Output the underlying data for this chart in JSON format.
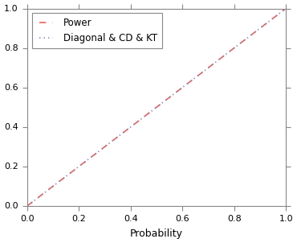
{
  "title": "",
  "xlabel": "Probability",
  "ylabel": "",
  "xlim": [
    0.0,
    1.0
  ],
  "ylim": [
    0.0,
    1.0
  ],
  "x_ticks": [
    0.0,
    0.2,
    0.4,
    0.6,
    0.8,
    1.0
  ],
  "y_ticks": [
    0.0,
    0.2,
    0.4,
    0.6,
    0.8,
    1.0
  ],
  "power_color": "#E8635A",
  "power_linestyle": "--",
  "power_linewidth": 1.2,
  "power_label": "Power",
  "diagonal_color": "#8888BB",
  "diagonal_linestyle": ":",
  "diagonal_linewidth": 1.2,
  "diagonal_label": "Diagonal & CD & KT",
  "background_color": "#FFFFFF",
  "axes_bg_color": "#FFFFFF",
  "legend_loc": "upper left",
  "legend_fontsize": 8.5,
  "xlabel_fontsize": 9,
  "tick_fontsize": 8,
  "figsize": [
    3.7,
    3.02
  ],
  "dpi": 100
}
